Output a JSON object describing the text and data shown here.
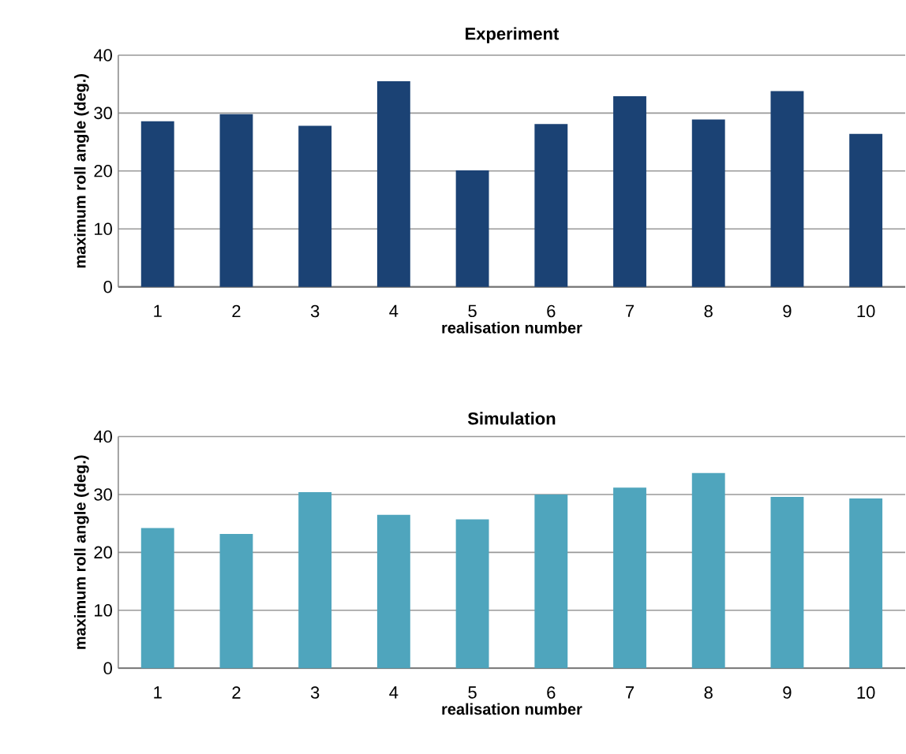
{
  "chart_data": [
    {
      "type": "bar",
      "title": "Experiment",
      "xlabel": "realisation number",
      "ylabel": "maximum roll angle (deg.)",
      "categories": [
        "1",
        "2",
        "3",
        "4",
        "5",
        "6",
        "7",
        "8",
        "9",
        "10"
      ],
      "values": [
        28.6,
        29.8,
        27.8,
        35.5,
        20.1,
        28.1,
        32.9,
        28.9,
        33.8,
        26.4
      ],
      "color": "#1b4274",
      "ylim": [
        0,
        40
      ],
      "yticks": [
        0,
        10,
        20,
        30,
        40
      ],
      "grid": "y"
    },
    {
      "type": "bar",
      "title": "Simulation",
      "xlabel": "realisation number",
      "ylabel": "maximum roll angle (deg.)",
      "categories": [
        "1",
        "2",
        "3",
        "4",
        "5",
        "6",
        "7",
        "8",
        "9",
        "10"
      ],
      "values": [
        24.2,
        23.2,
        30.4,
        26.5,
        25.7,
        30.0,
        31.2,
        33.7,
        29.6,
        29.3
      ],
      "color": "#4fa5bd",
      "ylim": [
        0,
        40
      ],
      "yticks": [
        0,
        10,
        20,
        30,
        40
      ],
      "grid": "y"
    }
  ]
}
